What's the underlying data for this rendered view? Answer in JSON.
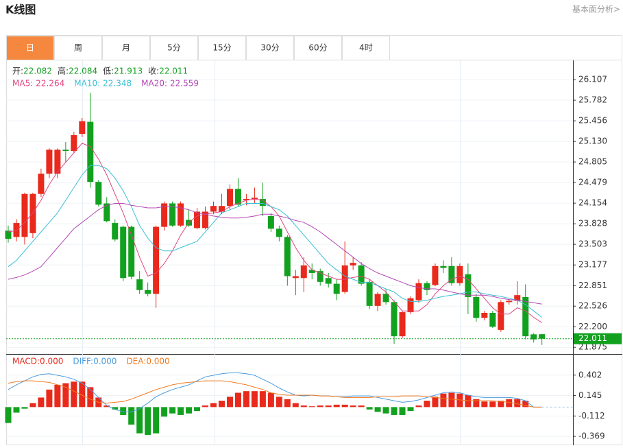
{
  "header": {
    "title": "K线图",
    "link": "基本面分析>"
  },
  "tabs": [
    "日",
    "周",
    "月",
    "5分",
    "15分",
    "30分",
    "60分",
    "4时"
  ],
  "active_tab": 0,
  "readout_labels": [
    "开:",
    "高:",
    "低:",
    "收:"
  ],
  "chart_data": [
    {
      "type": "candlestick",
      "up_color": "#e8291b",
      "down_color": "#12a11f",
      "open": [
        23.72,
        23.62,
        23.62,
        23.68,
        24.3,
        24.62,
        24.62,
        25.0,
        24.98,
        25.25,
        25.44,
        24.49,
        24.15,
        23.84,
        23.78,
        23.78,
        22.95,
        22.78,
        22.72,
        23.78,
        24.15,
        23.8,
        23.89,
        23.76,
        23.76,
        24.02,
        24.02,
        24.11,
        24.38,
        24.2,
        24.22,
        24.22,
        23.95,
        23.75,
        23.62,
        22.97,
        22.97,
        23.1,
        23.08,
        22.97,
        22.88,
        22.75,
        23.17,
        23.17,
        22.91,
        22.53,
        22.72,
        22.59,
        22.05,
        22.43,
        22.62,
        22.89,
        22.86,
        23.16,
        23.16,
        22.89,
        23.03,
        22.67,
        22.34,
        22.42,
        22.15,
        22.59,
        22.61,
        22.67,
        22.08,
        22.082
      ],
      "high": [
        23.8,
        23.9,
        24.32,
        24.32,
        24.7,
        25.02,
        25.02,
        25.12,
        25.28,
        25.5,
        25.9,
        24.52,
        24.25,
        23.9,
        23.8,
        23.8,
        23.08,
        22.9,
        23.8,
        24.18,
        24.18,
        24.18,
        24.05,
        24.08,
        24.1,
        24.18,
        24.3,
        24.45,
        24.55,
        24.3,
        24.4,
        24.48,
        24.0,
        23.8,
        23.65,
        23.1,
        23.3,
        23.2,
        23.12,
        23.05,
        22.95,
        23.55,
        23.3,
        23.22,
        22.95,
        22.75,
        22.8,
        22.62,
        22.45,
        22.68,
        22.95,
        22.92,
        23.2,
        23.25,
        23.3,
        23.2,
        23.2,
        22.72,
        22.45,
        22.45,
        22.62,
        22.64,
        22.92,
        22.87,
        22.1,
        22.084
      ],
      "low": [
        23.53,
        23.55,
        23.5,
        23.6,
        24.25,
        24.55,
        24.55,
        24.8,
        24.95,
        25.2,
        24.4,
        24.1,
        23.85,
        23.55,
        22.92,
        22.95,
        22.72,
        22.68,
        22.5,
        23.72,
        23.78,
        23.78,
        23.78,
        23.74,
        23.74,
        23.98,
        23.98,
        24.05,
        24.1,
        24.12,
        24.15,
        23.95,
        23.7,
        23.55,
        22.85,
        22.7,
        22.75,
        22.95,
        22.85,
        22.82,
        22.62,
        22.72,
        23.1,
        22.85,
        22.48,
        22.45,
        22.55,
        21.93,
        22.02,
        22.4,
        22.58,
        22.7,
        22.84,
        23.05,
        22.85,
        22.85,
        22.4,
        22.28,
        22.3,
        22.18,
        22.12,
        22.55,
        22.55,
        22.0,
        21.95,
        21.913
      ],
      "close": [
        23.59,
        23.84,
        24.3,
        24.3,
        24.62,
        25.0,
        25.0,
        24.98,
        25.23,
        25.45,
        24.49,
        24.13,
        23.87,
        23.58,
        22.97,
        22.99,
        22.78,
        22.72,
        23.78,
        24.15,
        23.8,
        24.15,
        23.8,
        24.02,
        24.02,
        24.11,
        24.11,
        24.38,
        24.13,
        24.22,
        24.24,
        24.11,
        23.75,
        23.62,
        23.0,
        23.0,
        23.17,
        23.05,
        22.91,
        22.88,
        22.72,
        23.17,
        23.21,
        22.88,
        22.53,
        22.72,
        22.59,
        22.05,
        22.43,
        22.65,
        22.89,
        22.78,
        23.16,
        23.13,
        22.89,
        23.16,
        22.67,
        22.34,
        22.42,
        22.2,
        22.59,
        22.61,
        22.7,
        22.05,
        22.0,
        22.011
      ],
      "ma": [
        {
          "name": "MA5:",
          "color": "#e0457f",
          "values": [
            23.7,
            23.72,
            23.85,
            24.0,
            24.2,
            24.45,
            24.65,
            24.8,
            24.95,
            25.1,
            25.05,
            24.85,
            24.6,
            24.3,
            24.0,
            23.65,
            23.3,
            23.0,
            23.05,
            23.2,
            23.4,
            23.65,
            23.85,
            23.95,
            23.98,
            24.0,
            24.02,
            24.1,
            24.15,
            24.2,
            24.22,
            24.2,
            24.1,
            23.95,
            23.7,
            23.45,
            23.25,
            23.1,
            23.05,
            23.0,
            22.95,
            22.95,
            22.98,
            23.0,
            22.95,
            22.85,
            22.75,
            22.6,
            22.45,
            22.45,
            22.45,
            22.55,
            22.72,
            22.85,
            22.95,
            23.0,
            22.95,
            22.8,
            22.65,
            22.5,
            22.4,
            22.4,
            22.5,
            22.45,
            22.35,
            22.264
          ]
        },
        {
          "name": "MA10:",
          "color": "#3bbfd6",
          "values": [
            23.15,
            23.25,
            23.4,
            23.55,
            23.7,
            23.85,
            24.0,
            24.2,
            24.4,
            24.6,
            24.75,
            24.75,
            24.7,
            24.55,
            24.35,
            24.1,
            23.8,
            23.6,
            23.45,
            23.4,
            23.4,
            23.45,
            23.5,
            23.55,
            23.7,
            23.85,
            24.0,
            24.05,
            24.1,
            24.15,
            24.15,
            24.15,
            24.1,
            24.05,
            23.95,
            23.8,
            23.65,
            23.5,
            23.35,
            23.2,
            23.1,
            23.0,
            22.95,
            22.9,
            22.9,
            22.85,
            22.8,
            22.75,
            22.65,
            22.6,
            22.6,
            22.62,
            22.65,
            22.68,
            22.7,
            22.72,
            22.75,
            22.75,
            22.72,
            22.7,
            22.68,
            22.65,
            22.62,
            22.55,
            22.45,
            22.348
          ]
        },
        {
          "name": "MA20:",
          "color": "#b347b5",
          "values": [
            22.95,
            22.98,
            23.02,
            23.08,
            23.15,
            23.3,
            23.45,
            23.6,
            23.75,
            23.85,
            23.95,
            24.05,
            24.12,
            24.15,
            24.15,
            24.12,
            24.1,
            24.08,
            24.08,
            24.1,
            24.1,
            24.08,
            24.05,
            24.0,
            23.98,
            23.95,
            23.93,
            23.92,
            23.92,
            23.93,
            23.95,
            23.98,
            23.98,
            23.95,
            23.92,
            23.88,
            23.85,
            23.78,
            23.7,
            23.6,
            23.5,
            23.4,
            23.3,
            23.2,
            23.12,
            23.05,
            23.0,
            22.95,
            22.9,
            22.85,
            22.82,
            22.8,
            22.8,
            22.78,
            22.75,
            22.72,
            22.7,
            22.7,
            22.7,
            22.68,
            22.65,
            22.63,
            22.62,
            22.6,
            22.58,
            22.559
          ]
        }
      ],
      "ylim": [
        21.78,
        26.39
      ],
      "yticks": [
        26.107,
        25.782,
        25.456,
        {
          "value": 25.13,
          "label": "25.130"
        },
        24.805,
        24.479,
        24.154,
        23.828,
        23.503,
        23.177,
        22.851,
        22.526,
        {
          "value": 22.2,
          "label": "22.200"
        },
        21.875
      ],
      "grid": true
    },
    {
      "type": "macd",
      "up_color": "#e8291b",
      "down_color": "#12a11f",
      "series": [
        {
          "name": "MACD:",
          "color": "#e8291b",
          "last_label": "0.000",
          "values": [
            -0.2,
            -0.07,
            -0.02,
            0.05,
            0.12,
            0.22,
            0.28,
            0.3,
            0.32,
            0.32,
            0.25,
            0.12,
            0.02,
            -0.03,
            -0.1,
            -0.22,
            -0.33,
            -0.35,
            -0.33,
            -0.12,
            -0.08,
            -0.1,
            -0.08,
            -0.05,
            0.02,
            0.05,
            0.08,
            0.13,
            0.18,
            0.2,
            0.2,
            0.2,
            0.18,
            0.13,
            0.1,
            0.05,
            0.02,
            0.01,
            0.02,
            0.02,
            0.03,
            0.03,
            0.02,
            0.02,
            -0.03,
            -0.06,
            -0.08,
            -0.1,
            -0.1,
            -0.05,
            0.02,
            0.08,
            0.13,
            0.17,
            0.18,
            0.17,
            0.15,
            0.1,
            0.07,
            0.07,
            0.08,
            0.1,
            0.1,
            0.08,
            0,
            0
          ]
        },
        {
          "name": "DIFF:",
          "color": "#4a9be0",
          "last_label": "0.000",
          "values": [
            0.22,
            0.28,
            0.33,
            0.38,
            0.41,
            0.42,
            0.4,
            0.38,
            0.35,
            0.3,
            0.22,
            0.12,
            0.02,
            -0.03,
            -0.06,
            -0.06,
            -0.02,
            0.05,
            0.13,
            0.18,
            0.22,
            0.25,
            0.28,
            0.33,
            0.38,
            0.4,
            0.42,
            0.43,
            0.43,
            0.42,
            0.4,
            0.35,
            0.3,
            0.24,
            0.19,
            0.15,
            0.14,
            0.15,
            0.14,
            0.14,
            0.13,
            0.13,
            0.14,
            0.14,
            0.14,
            0.12,
            0.1,
            0.08,
            0.06,
            0.07,
            0.09,
            0.12,
            0.15,
            0.18,
            0.19,
            0.18,
            0.15,
            0.13,
            0.12,
            0.12,
            0.12,
            0.12,
            0.11,
            0.08,
            0.0,
            0.0
          ]
        },
        {
          "name": "DEA:",
          "color": "#f07a1f",
          "last_label": "0.000",
          "values": [
            0.3,
            0.32,
            0.33,
            0.33,
            0.32,
            0.31,
            0.28,
            0.25,
            0.2,
            0.15,
            0.1,
            0.06,
            0.05,
            0.06,
            0.07,
            0.1,
            0.14,
            0.18,
            0.22,
            0.25,
            0.28,
            0.3,
            0.31,
            0.32,
            0.33,
            0.33,
            0.33,
            0.32,
            0.3,
            0.28,
            0.25,
            0.22,
            0.18,
            0.16,
            0.15,
            0.15,
            0.15,
            0.15,
            0.14,
            0.14,
            0.13,
            0.12,
            0.12,
            0.12,
            0.12,
            0.13,
            0.13,
            0.13,
            0.14,
            0.14,
            0.14,
            0.13,
            0.12,
            0.11,
            0.1,
            0.09,
            0.08,
            0.08,
            0.08,
            0.08,
            0.07,
            0.06,
            0.04,
            0.02,
            0.0,
            0.0
          ]
        }
      ],
      "ylim": [
        -0.48,
        0.65
      ],
      "yticks": [
        0.402,
        0.145,
        -0.112,
        -0.369
      ],
      "grid": true
    }
  ]
}
